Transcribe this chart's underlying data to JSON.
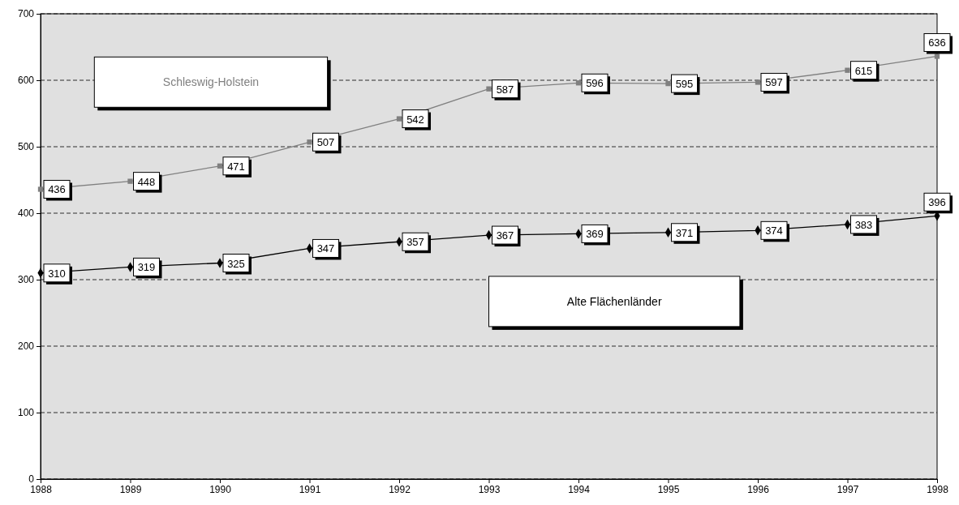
{
  "chart_data": {
    "type": "line",
    "x": [
      1988,
      1989,
      1990,
      1991,
      1992,
      1993,
      1994,
      1995,
      1996,
      1997,
      1998
    ],
    "series": [
      {
        "name": "Schleswig-Holstein",
        "color": "#808080",
        "marker": "square",
        "values": [
          436,
          448,
          471,
          507,
          542,
          587,
          596,
          595,
          597,
          615,
          636
        ]
      },
      {
        "name": "Alte Flächenländer",
        "color": "#000000",
        "marker": "diamond",
        "values": [
          310,
          319,
          325,
          347,
          357,
          367,
          369,
          371,
          374,
          383,
          396
        ]
      }
    ],
    "xlim": [
      1988,
      1998
    ],
    "xticks": [
      1988,
      1989,
      1990,
      1991,
      1992,
      1993,
      1994,
      1995,
      1996,
      1997,
      1998
    ],
    "ylim": [
      0,
      700
    ],
    "yticks": [
      0,
      100,
      200,
      300,
      400,
      500,
      600,
      700
    ],
    "grid": "y",
    "legend": false,
    "data_labels": true,
    "line_style": "solid"
  }
}
